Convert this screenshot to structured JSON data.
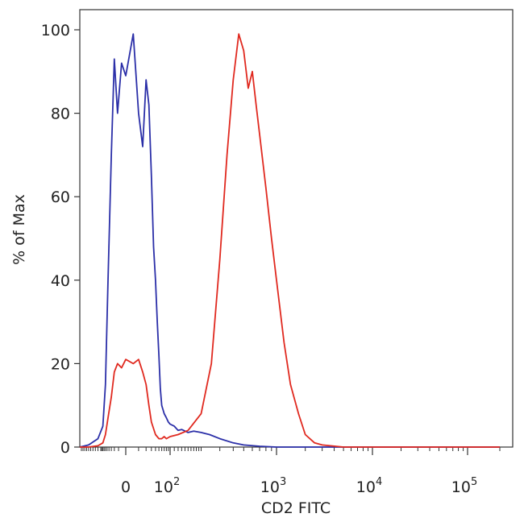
{
  "chart_data": {
    "type": "line",
    "title": "",
    "xlabel": "CD2 FITC",
    "ylabel": "% of Max",
    "x_scale": "biexponential",
    "ylim": [
      0,
      100
    ],
    "y_ticks": [
      0,
      20,
      40,
      60,
      80,
      100
    ],
    "y_tick_labels": [
      "0",
      "20",
      "40",
      "60",
      "80",
      "100"
    ],
    "x_ticks": [
      {
        "base": "0",
        "exp": ""
      },
      {
        "base": "10",
        "exp": "2"
      },
      {
        "base": "10",
        "exp": "3"
      },
      {
        "base": "10",
        "exp": "4"
      },
      {
        "base": "10",
        "exp": "5"
      }
    ],
    "grid": false,
    "legend": "none",
    "series": [
      {
        "color": "#2b2fa8",
        "x": [
          -200,
          -150,
          -110,
          -80,
          -60,
          -45,
          -30,
          -20,
          -12,
          -5,
          0,
          5,
          10,
          15,
          20,
          25,
          30,
          35,
          40,
          45,
          50,
          55,
          60,
          70,
          80,
          90,
          100,
          110,
          120,
          130,
          150,
          170,
          200,
          240,
          300,
          400,
          500,
          700,
          1000,
          2000,
          5000,
          100000,
          200000
        ],
        "y": [
          0,
          0.5,
          2,
          5,
          15,
          40,
          70,
          93,
          80,
          92,
          89,
          99,
          80,
          72,
          88,
          82,
          65,
          48,
          40,
          30,
          22,
          14,
          10,
          8,
          7,
          6,
          5.5,
          5,
          4,
          4.2,
          3.5,
          3.8,
          3.5,
          3,
          2,
          1,
          0.5,
          0.2,
          0,
          0,
          0,
          0,
          0
        ]
      },
      {
        "color": "#e0291f",
        "x": [
          -200,
          -150,
          -110,
          -80,
          -60,
          -45,
          -30,
          -20,
          -12,
          -5,
          0,
          5,
          10,
          15,
          20,
          25,
          30,
          40,
          50,
          60,
          70,
          80,
          100,
          120,
          150,
          200,
          250,
          300,
          350,
          400,
          450,
          500,
          550,
          600,
          650,
          700,
          800,
          900,
          1000,
          1200,
          1400,
          1700,
          2000,
          2500,
          3000,
          5000,
          10000,
          100000,
          200000
        ],
        "y": [
          0,
          0,
          0.3,
          1,
          3,
          7,
          12,
          18,
          20,
          19,
          21,
          20,
          21,
          18,
          15,
          10,
          6,
          3,
          2,
          2,
          2.5,
          2,
          2.5,
          3,
          4,
          8,
          20,
          45,
          70,
          88,
          99,
          95,
          86,
          90,
          82,
          75,
          62,
          50,
          40,
          25,
          15,
          8,
          3,
          1,
          0.5,
          0,
          0,
          0,
          0
        ]
      }
    ]
  }
}
